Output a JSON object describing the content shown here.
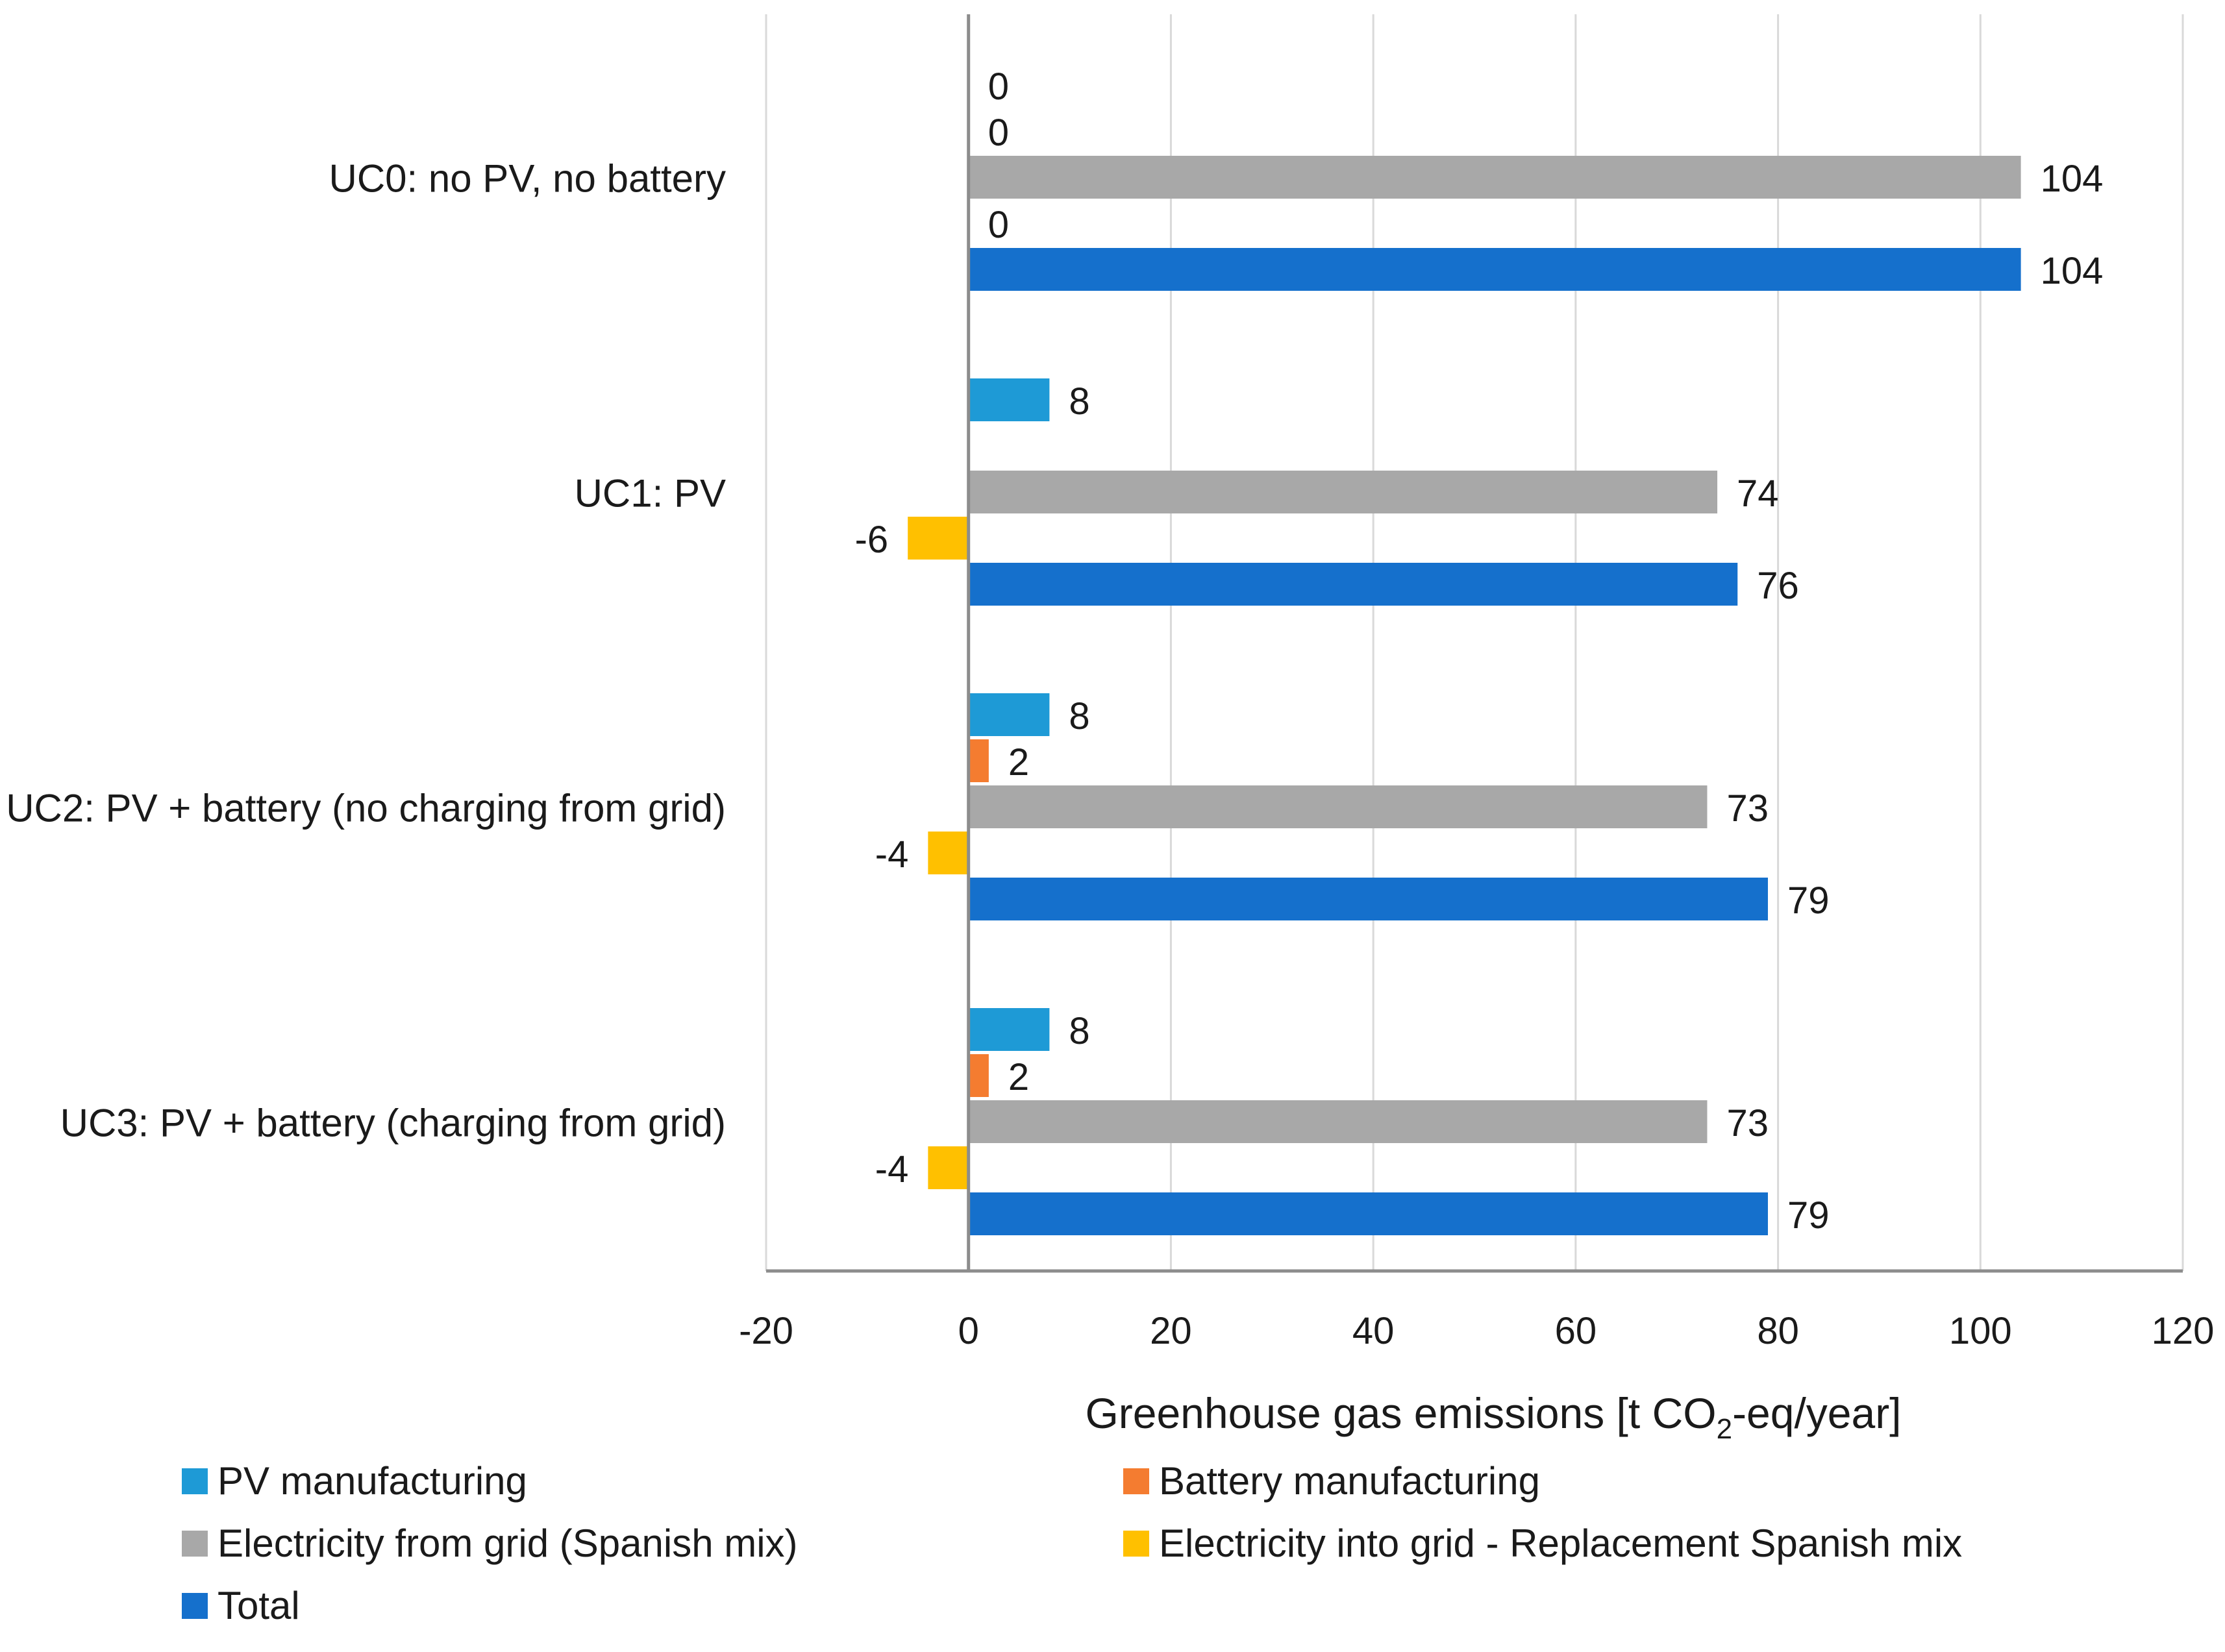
{
  "chart_data": {
    "type": "bar",
    "orientation": "horizontal",
    "categories": [
      "UC0: no PV, no battery",
      "UC1: PV",
      "UC2: PV + battery (no charging from grid)",
      "UC3: PV + battery (charging from grid)"
    ],
    "series": [
      {
        "name": "PV manufacturing",
        "color": "#1e9ad6",
        "values": [
          0,
          8,
          8,
          8
        ],
        "labels": [
          "0",
          "8",
          "8",
          "8"
        ]
      },
      {
        "name": "Battery manufacturing",
        "color": "#f47c30",
        "values": [
          null,
          null,
          2,
          2
        ],
        "labels": [
          "0",
          null,
          "2",
          "2"
        ]
      },
      {
        "name": "Electricity from grid (Spanish mix)",
        "color": "#a8a8a8",
        "values": [
          104,
          74,
          73,
          73
        ],
        "labels": [
          "104",
          "74",
          "73",
          "73"
        ]
      },
      {
        "name": "Electricity into grid - Replacement Spanish mix",
        "color": "#ffc000",
        "values": [
          0,
          -6,
          -4,
          -4
        ],
        "labels": [
          "0",
          "-6",
          "-4",
          "-4"
        ]
      },
      {
        "name": "Total",
        "color": "#1570cc",
        "values": [
          104,
          76,
          79,
          79
        ],
        "labels": [
          "104",
          "76",
          "79",
          "79"
        ]
      }
    ],
    "xlabel": {
      "prefix": "Greenhouse  gas emissions  [t CO",
      "subscript": "2",
      "suffix": "-eq/year]"
    },
    "ylabel": "",
    "xlim": [
      -20,
      120
    ],
    "xticks": [
      -20,
      0,
      20,
      40,
      60,
      80,
      100,
      120
    ],
    "grid": true,
    "legend_position": "bottom"
  }
}
